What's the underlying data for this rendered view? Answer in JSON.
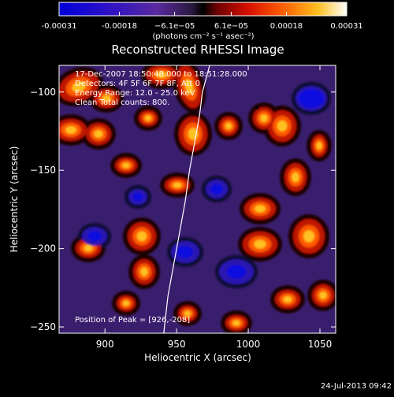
{
  "chart_data": {
    "type": "heatmap",
    "title": "Reconstructed RHESSI Image",
    "xlabel": "Heliocentric X (arcsec)",
    "ylabel": "Heliocentric Y (arcsec)",
    "xlim": [
      868,
      1061
    ],
    "ylim": [
      -254,
      -83
    ],
    "x_ticks": [
      900,
      950,
      1000,
      1050
    ],
    "x_tick_labels": [
      "900",
      "950",
      "1000",
      "1050"
    ],
    "y_ticks": [
      -100,
      -150,
      -200,
      -250
    ],
    "y_tick_labels": [
      "−100",
      "−150",
      "−200",
      "−250"
    ],
    "colorbar": {
      "min": -0.00031,
      "max": 0.00031,
      "tick_values": [
        -0.00031,
        -0.00018,
        -6.1e-05,
        6.1e-05,
        0.00018,
        0.00031
      ],
      "tick_labels": [
        "-0.00031",
        "-0.00018",
        "−6.1e−05",
        "6.1e−05",
        "0.00018",
        "0.00031"
      ],
      "units_label": "(photons cm⁻² s⁻¹ asec⁻²)"
    },
    "annotations": {
      "time_range": "17-Dec-2007 18:50:48.000 to 18:51:28.000",
      "detectors": "Detectors: 4F 5F 6F 7F 8F, Att 0",
      "energy_range": "Energy Range: 12.0 - 25.0 keV",
      "clean": "Clean    Total counts: 800.",
      "peak": "Position of Peak = [926,-208]"
    },
    "peak_position": [
      926,
      -208
    ],
    "limb_curve": {
      "x": [
        941,
        944,
        948,
        952,
        956,
        959,
        963,
        966,
        968,
        971,
        973
      ],
      "y": [
        -254,
        -230,
        -210,
        -190,
        -170,
        -150,
        -130,
        -115,
        -100,
        -90,
        -83
      ]
    },
    "grid": false
  },
  "footer": {
    "date": "24-Jul-2013 09:42"
  }
}
